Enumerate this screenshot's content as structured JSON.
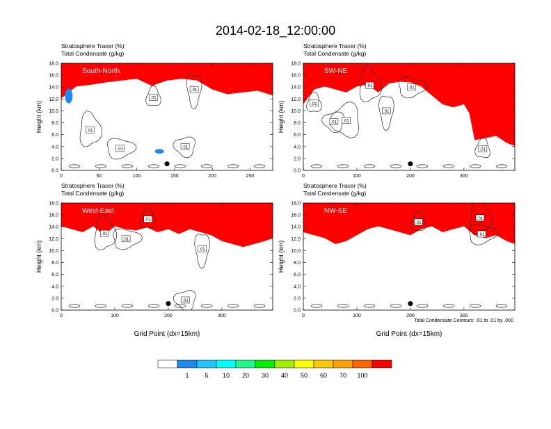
{
  "title": "2014-02-18_12:00:00",
  "chart_data": [
    {
      "type": "heatmap",
      "panel_label": "South-North",
      "subtitle_fill": "Stratosphere Tracer   (%)",
      "subtitle_contour": "Total Condensate   (g/kg)",
      "ylabel": "Height (km)",
      "xlabel": "",
      "ylim": [
        0,
        18
      ],
      "xlim": [
        0,
        280
      ],
      "yticks": [
        "0.0",
        "2.0",
        "4.0",
        "6.0",
        "8.0",
        "10.0",
        "12.0",
        "14.0",
        "16.0",
        "18.0"
      ],
      "xticks": [
        {
          "v": 0,
          "t": "0"
        },
        {
          "v": 50,
          "t": "50"
        },
        {
          "v": 100,
          "t": "100"
        },
        {
          "v": 150,
          "t": "150"
        },
        {
          "v": 200,
          "t": "200"
        },
        {
          "v": 250,
          "t": "250"
        }
      ],
      "marker_x": 140,
      "contour_labels": [
        {
          "x": 122,
          "y": 12.3,
          "t": ".01"
        },
        {
          "x": 38,
          "y": 6.8,
          "t": ".01"
        },
        {
          "x": 78,
          "y": 3.7,
          "t": ".01"
        },
        {
          "x": 176,
          "y": 13.6,
          "t": ".01"
        },
        {
          "x": 164,
          "y": 4.0,
          "t": ".01"
        }
      ],
      "tracer_front": [
        [
          0,
          13.5
        ],
        [
          10,
          14.5
        ],
        [
          20,
          15.5
        ],
        [
          40,
          15.8
        ],
        [
          60,
          16.2
        ],
        [
          80,
          16.5
        ],
        [
          100,
          16.8
        ],
        [
          120,
          15.6
        ],
        [
          140,
          16.5
        ],
        [
          160,
          16.8
        ],
        [
          180,
          16.5
        ],
        [
          200,
          15.0
        ],
        [
          220,
          14.2
        ],
        [
          240,
          14.5
        ],
        [
          260,
          14.8
        ],
        [
          280,
          14.0
        ]
      ],
      "blobs": [
        {
          "x": 130,
          "y": 3.2,
          "w": 12,
          "h": 0.8,
          "c": "#1e8cef"
        },
        {
          "x": 10,
          "y": 12.5,
          "w": 10,
          "h": 2.5,
          "c": "#1e8cef"
        }
      ]
    },
    {
      "type": "heatmap",
      "panel_label": "SW-NE",
      "subtitle_fill": "Stratosphere Tracer   (%)",
      "subtitle_contour": "Total Condensate   (g/kg)",
      "ylabel": "Height (km)",
      "xlabel": "",
      "ylim": [
        0,
        18
      ],
      "xlim": [
        0,
        395
      ],
      "yticks": [
        "0.0",
        "2.0",
        "4.0",
        "6.0",
        "8.0",
        "10.0",
        "12.0",
        "14.0",
        "16.0",
        "18.0"
      ],
      "xticks": [
        {
          "v": 0,
          "t": "0"
        },
        {
          "v": 100,
          "t": "100"
        },
        {
          "v": 200,
          "t": "200"
        },
        {
          "v": 300,
          "t": "300"
        }
      ],
      "marker_x": 200,
      "contour_labels": [
        {
          "x": 20,
          "y": 11.3,
          "t": ".01"
        },
        {
          "x": 124,
          "y": 14.3,
          "t": ".01"
        },
        {
          "x": 202,
          "y": 14.0,
          "t": ".01"
        },
        {
          "x": 155,
          "y": 10.0,
          "t": ".01"
        },
        {
          "x": 57,
          "y": 8.2,
          "t": ".01"
        },
        {
          "x": 80,
          "y": 8.4,
          "t": ".01"
        },
        {
          "x": 335,
          "y": 3.6,
          "t": ".01"
        }
      ],
      "tracer_front": [
        [
          0,
          12.5
        ],
        [
          20,
          15.0
        ],
        [
          40,
          15.5
        ],
        [
          60,
          15.0
        ],
        [
          80,
          14.5
        ],
        [
          100,
          15.5
        ],
        [
          120,
          15.8
        ],
        [
          140,
          14.5
        ],
        [
          160,
          16.0
        ],
        [
          180,
          16.3
        ],
        [
          200,
          16.2
        ],
        [
          220,
          15.5
        ],
        [
          240,
          14.0
        ],
        [
          260,
          12.5
        ],
        [
          280,
          12.0
        ],
        [
          300,
          12.5
        ],
        [
          310,
          11.0
        ],
        [
          320,
          6.5
        ],
        [
          340,
          6.8
        ],
        [
          360,
          7.2
        ],
        [
          380,
          6.0
        ],
        [
          395,
          5.5
        ]
      ],
      "blobs": []
    },
    {
      "type": "heatmap",
      "panel_label": "West-East",
      "subtitle_fill": "Stratosphere Tracer   (%)",
      "subtitle_contour": "Total Condensate   (g/kg)",
      "ylabel": "Height (km)",
      "xlabel": "Grid Point (dx=15km)",
      "ylim": [
        0,
        18
      ],
      "xlim": [
        0,
        395
      ],
      "yticks": [
        "0.0",
        "2.0",
        "4.0",
        "6.0",
        "8.0",
        "10.0",
        "12.0",
        "14.0",
        "16.0",
        "18.0"
      ],
      "xticks": [
        {
          "v": 0,
          "t": "0"
        },
        {
          "v": 100,
          "t": "100"
        },
        {
          "v": 200,
          "t": "200"
        },
        {
          "v": 300,
          "t": "300"
        }
      ],
      "marker_x": 200,
      "contour_labels": [
        {
          "x": 162,
          "y": 15.3,
          "t": ".01"
        },
        {
          "x": 81,
          "y": 12.9,
          "t": ".01"
        },
        {
          "x": 121,
          "y": 12.0,
          "t": ".01"
        },
        {
          "x": 263,
          "y": 10.3,
          "t": ".01"
        },
        {
          "x": 232,
          "y": 1.7,
          "t": ".01"
        }
      ],
      "tracer_front": [
        [
          0,
          15.5
        ],
        [
          20,
          15.0
        ],
        [
          40,
          14.5
        ],
        [
          60,
          15.5
        ],
        [
          80,
          14.0
        ],
        [
          100,
          15.5
        ],
        [
          120,
          15.0
        ],
        [
          140,
          14.8
        ],
        [
          160,
          15.3
        ],
        [
          180,
          14.5
        ],
        [
          200,
          15.0
        ],
        [
          220,
          14.2
        ],
        [
          240,
          15.0
        ],
        [
          260,
          14.5
        ],
        [
          280,
          14.0
        ],
        [
          300,
          13.0
        ],
        [
          320,
          12.5
        ],
        [
          340,
          12.0
        ],
        [
          360,
          12.5
        ],
        [
          380,
          13.0
        ],
        [
          395,
          13.5
        ]
      ],
      "blobs": []
    },
    {
      "type": "heatmap",
      "panel_label": "NW-SE",
      "subtitle_fill": "Stratosphere Tracer   (%)",
      "subtitle_contour": "Total Condensate   (g/kg)",
      "ylabel": "Height (km)",
      "xlabel": "Grid Point (dx=15km)",
      "ylim": [
        0,
        18
      ],
      "xlim": [
        0,
        395
      ],
      "yticks": [
        "0.0",
        "2.0",
        "4.0",
        "6.0",
        "8.0",
        "10.0",
        "12.0",
        "14.0",
        "16.0",
        "18.0"
      ],
      "xticks": [
        {
          "v": 0,
          "t": "0"
        },
        {
          "v": 100,
          "t": "100"
        },
        {
          "v": 200,
          "t": "200"
        },
        {
          "v": 300,
          "t": "300"
        }
      ],
      "marker_x": 200,
      "contour_labels": [
        {
          "x": 215,
          "y": 14.8,
          "t": ".01"
        },
        {
          "x": 330,
          "y": 15.5,
          "t": ".01"
        },
        {
          "x": 333,
          "y": 12.8,
          "t": ".01"
        }
      ],
      "tracer_front": [
        [
          0,
          14.5
        ],
        [
          20,
          14.0
        ],
        [
          40,
          13.5
        ],
        [
          60,
          12.5
        ],
        [
          80,
          13.0
        ],
        [
          100,
          14.0
        ],
        [
          120,
          15.0
        ],
        [
          140,
          15.5
        ],
        [
          160,
          15.0
        ],
        [
          180,
          14.5
        ],
        [
          200,
          14.0
        ],
        [
          220,
          15.0
        ],
        [
          240,
          15.5
        ],
        [
          260,
          14.5
        ],
        [
          280,
          15.0
        ],
        [
          300,
          15.5
        ],
        [
          320,
          14.0
        ],
        [
          340,
          13.5
        ],
        [
          360,
          14.0
        ],
        [
          380,
          13.0
        ],
        [
          395,
          12.5
        ]
      ],
      "blobs": []
    }
  ],
  "footnote": "Total Condensate Contours: .01 to .01 by .000",
  "colorbar": {
    "colors": [
      "#ffffff",
      "#1e8cef",
      "#1ec8ff",
      "#00ffff",
      "#1efa8c",
      "#00f000",
      "#a0f000",
      "#ffff00",
      "#ffc800",
      "#ffa000",
      "#ff6400",
      "#ff0000"
    ],
    "labels": [
      "1",
      "5",
      "10",
      "20",
      "30",
      "40",
      "50",
      "60",
      "70",
      "100"
    ]
  }
}
